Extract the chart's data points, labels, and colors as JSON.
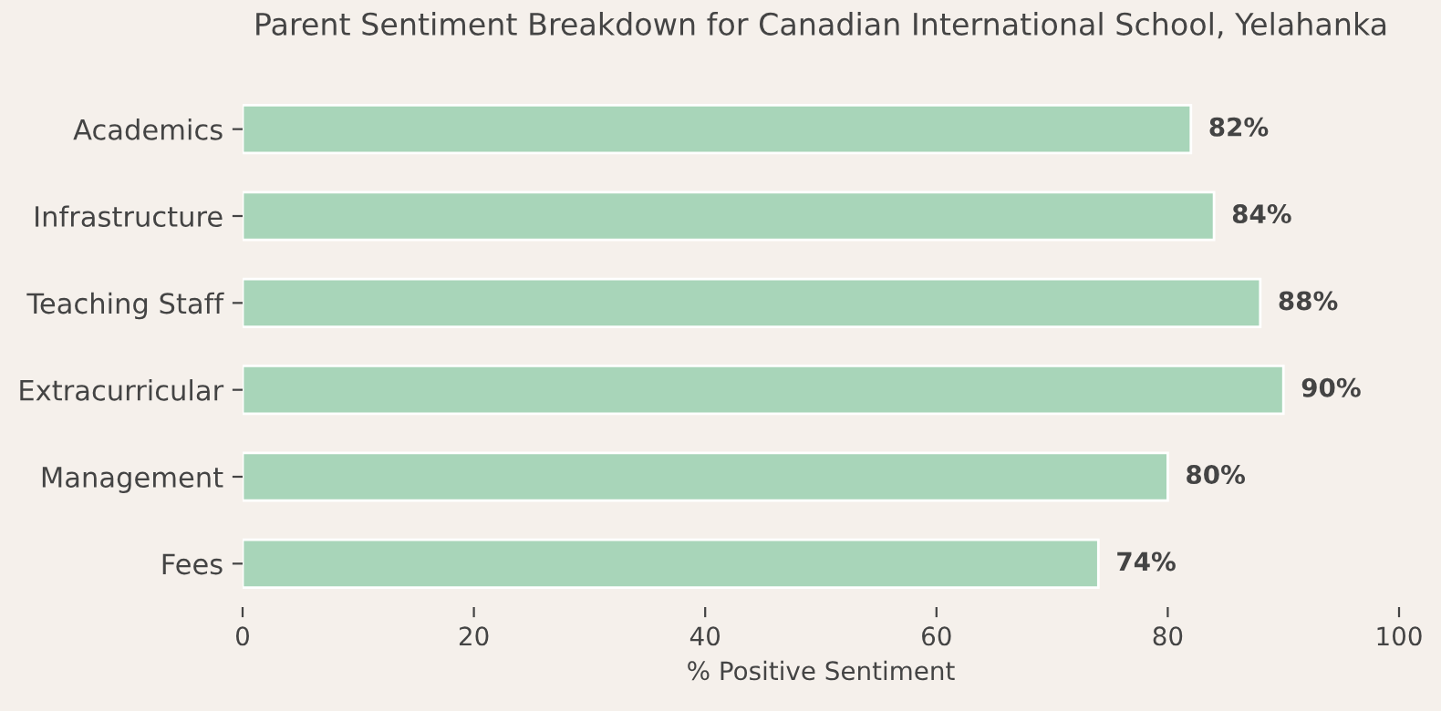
{
  "chart_data": {
    "type": "bar",
    "orientation": "horizontal",
    "title": "Parent Sentiment Breakdown for Canadian International School, Yelahanka",
    "xlabel": "% Positive Sentiment",
    "categories": [
      "Academics",
      "Infrastructure",
      "Teaching Staff",
      "Extracurricular",
      "Management",
      "Fees"
    ],
    "values": [
      82,
      84,
      88,
      90,
      80,
      74
    ],
    "value_labels": [
      "82%",
      "84%",
      "88%",
      "90%",
      "80%",
      "74%"
    ],
    "color": "#a8d5b9",
    "xlim": [
      0,
      100
    ],
    "xticks": [
      0,
      20,
      40,
      60,
      80,
      100
    ],
    "grid": false,
    "legend": false
  }
}
